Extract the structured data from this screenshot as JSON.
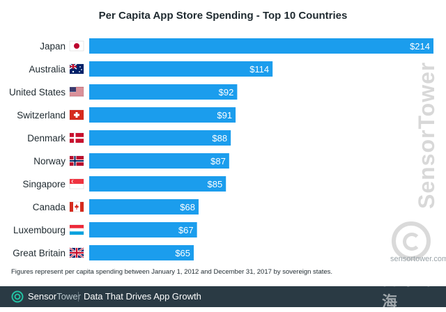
{
  "chart_data": {
    "type": "bar",
    "orientation": "horizontal",
    "title": "Per Capita App Store Spending - Top 10 Countries",
    "categories": [
      "Japan",
      "Australia",
      "United States",
      "Switzerland",
      "Denmark",
      "Norway",
      "Singapore",
      "Canada",
      "Luxembourg",
      "Great Britain"
    ],
    "values": [
      214,
      114,
      92,
      91,
      88,
      87,
      85,
      68,
      67,
      65
    ],
    "value_labels": [
      "$214",
      "$114",
      "$92",
      "$91",
      "$88",
      "$87",
      "$85",
      "$68",
      "$67",
      "$65"
    ],
    "flags": [
      "japan-flag-icon",
      "australia-flag-icon",
      "united-states-flag-icon",
      "switzerland-flag-icon",
      "denmark-flag-icon",
      "norway-flag-icon",
      "singapore-flag-icon",
      "canada-flag-icon",
      "luxembourg-flag-icon",
      "great-britain-flag-icon"
    ],
    "xlim": [
      0,
      214
    ],
    "bar_color": "#1b9ded",
    "xlabel": "",
    "ylabel": ""
  },
  "footnote": "Figures represent per capita spending between January 1, 2012 and December 31, 2017 by sovereign states.",
  "watermark": {
    "brand_vertical": "SensorTower",
    "url": "sensortower.com",
    "corner_mark": "白鲸出海"
  },
  "footer": {
    "brand_bold": "Sensor",
    "brand_light": "Tower",
    "tagline": "Data That Drives App Growth",
    "background": "#2a3a44"
  }
}
